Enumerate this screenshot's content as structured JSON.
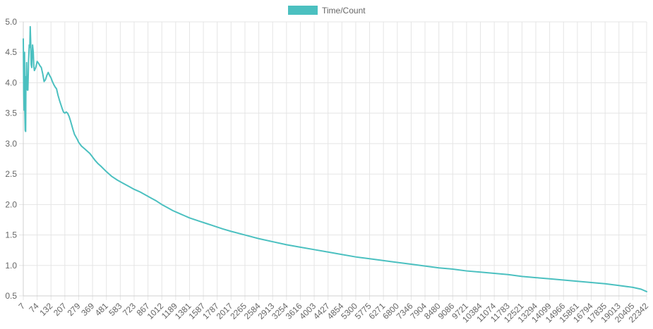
{
  "legend": {
    "label": "Time/Count",
    "color": "#4bc0c0"
  },
  "chart_data": {
    "type": "line",
    "title": "",
    "xlabel": "",
    "ylabel": "",
    "legend_position": "top-center",
    "grid": true,
    "x_is_category": true,
    "ylim": [
      0.5,
      5.0
    ],
    "y_ticks": [
      0.5,
      1.0,
      1.5,
      2.0,
      2.5,
      3.0,
      3.5,
      4.0,
      4.5,
      5.0
    ],
    "y_tick_labels": [
      "0.5",
      "1.0",
      "1.5",
      "2.0",
      "2.5",
      "3.0",
      "3.5",
      "4.0",
      "4.5",
      "5.0"
    ],
    "x_tick_labels": [
      "7",
      "74",
      "132",
      "207",
      "279",
      "369",
      "481",
      "583",
      "723",
      "867",
      "1012",
      "1189",
      "1381",
      "1587",
      "1787",
      "2017",
      "2265",
      "2584",
      "2913",
      "3254",
      "3616",
      "4003",
      "4427",
      "4854",
      "5300",
      "5775",
      "6271",
      "6800",
      "7346",
      "7904",
      "8480",
      "9086",
      "9721",
      "10384",
      "11074",
      "11783",
      "12521",
      "13294",
      "14099",
      "14966",
      "15861",
      "16794",
      "17835",
      "19013",
      "20405",
      "22342"
    ],
    "series": [
      {
        "name": "Time/Count",
        "color": "#4bc0c0",
        "points": [
          [
            0,
            4.72
          ],
          [
            0.03,
            3.85
          ],
          [
            0.06,
            3.55
          ],
          [
            0.09,
            4.5
          ],
          [
            0.11,
            3.55
          ],
          [
            0.14,
            3.22
          ],
          [
            0.17,
            3.2
          ],
          [
            0.19,
            4.1
          ],
          [
            0.21,
            3.9
          ],
          [
            0.24,
            4.33
          ],
          [
            0.26,
            3.95
          ],
          [
            0.29,
            3.88
          ],
          [
            0.33,
            3.88
          ],
          [
            0.38,
            4.35
          ],
          [
            0.43,
            4.62
          ],
          [
            0.47,
            4.58
          ],
          [
            0.5,
            4.92
          ],
          [
            0.53,
            4.7
          ],
          [
            0.57,
            4.3
          ],
          [
            0.61,
            4.25
          ],
          [
            0.64,
            4.45
          ],
          [
            0.67,
            4.62
          ],
          [
            0.72,
            4.5
          ],
          [
            0.76,
            4.27
          ],
          [
            0.8,
            4.2
          ],
          [
            0.9,
            4.25
          ],
          [
            1.0,
            4.35
          ],
          [
            1.1,
            4.32
          ],
          [
            1.2,
            4.28
          ],
          [
            1.3,
            4.25
          ],
          [
            1.4,
            4.15
          ],
          [
            1.5,
            4.02
          ],
          [
            1.6,
            4.05
          ],
          [
            1.7,
            4.12
          ],
          [
            1.8,
            4.17
          ],
          [
            1.9,
            4.12
          ],
          [
            2.0,
            4.08
          ],
          [
            2.1,
            4.02
          ],
          [
            2.2,
            3.97
          ],
          [
            2.3,
            3.93
          ],
          [
            2.4,
            3.9
          ],
          [
            2.5,
            3.8
          ],
          [
            2.6,
            3.72
          ],
          [
            2.7,
            3.65
          ],
          [
            2.8,
            3.58
          ],
          [
            2.9,
            3.52
          ],
          [
            3.0,
            3.5
          ],
          [
            3.1,
            3.52
          ],
          [
            3.2,
            3.5
          ],
          [
            3.3,
            3.45
          ],
          [
            3.4,
            3.38
          ],
          [
            3.5,
            3.3
          ],
          [
            3.6,
            3.22
          ],
          [
            3.7,
            3.15
          ],
          [
            3.8,
            3.11
          ],
          [
            3.9,
            3.07
          ],
          [
            4.0,
            3.02
          ],
          [
            4.2,
            2.96
          ],
          [
            4.4,
            2.92
          ],
          [
            4.6,
            2.88
          ],
          [
            4.8,
            2.84
          ],
          [
            5.0,
            2.78
          ],
          [
            5.2,
            2.72
          ],
          [
            5.4,
            2.67
          ],
          [
            5.6,
            2.63
          ],
          [
            6.0,
            2.54
          ],
          [
            6.4,
            2.46
          ],
          [
            6.8,
            2.4
          ],
          [
            7.2,
            2.35
          ],
          [
            7.6,
            2.3
          ],
          [
            8.0,
            2.25
          ],
          [
            8.4,
            2.21
          ],
          [
            8.8,
            2.16
          ],
          [
            9.2,
            2.11
          ],
          [
            9.6,
            2.06
          ],
          [
            10.0,
            2.0
          ],
          [
            10.4,
            1.95
          ],
          [
            10.8,
            1.9
          ],
          [
            11.2,
            1.86
          ],
          [
            11.6,
            1.82
          ],
          [
            12.0,
            1.78
          ],
          [
            12.4,
            1.75
          ],
          [
            12.8,
            1.72
          ],
          [
            13.2,
            1.69
          ],
          [
            13.6,
            1.66
          ],
          [
            14.0,
            1.63
          ],
          [
            14.4,
            1.6
          ],
          [
            15.0,
            1.56
          ],
          [
            16.0,
            1.5
          ],
          [
            17.0,
            1.44
          ],
          [
            18.0,
            1.39
          ],
          [
            19.0,
            1.34
          ],
          [
            20.0,
            1.3
          ],
          [
            21.0,
            1.26
          ],
          [
            22.0,
            1.22
          ],
          [
            23.0,
            1.18
          ],
          [
            24.0,
            1.14
          ],
          [
            25.0,
            1.11
          ],
          [
            26.0,
            1.08
          ],
          [
            27.0,
            1.05
          ],
          [
            28.0,
            1.02
          ],
          [
            29.0,
            0.99
          ],
          [
            30.0,
            0.96
          ],
          [
            31.0,
            0.94
          ],
          [
            32.0,
            0.91
          ],
          [
            33.0,
            0.89
          ],
          [
            34.0,
            0.87
          ],
          [
            35.0,
            0.85
          ],
          [
            36.0,
            0.82
          ],
          [
            37.0,
            0.8
          ],
          [
            38.0,
            0.78
          ],
          [
            39.0,
            0.76
          ],
          [
            40.0,
            0.74
          ],
          [
            41.0,
            0.72
          ],
          [
            42.0,
            0.7
          ],
          [
            43.0,
            0.67
          ],
          [
            44.0,
            0.64
          ],
          [
            44.6,
            0.61
          ],
          [
            45.0,
            0.57
          ]
        ]
      }
    ]
  }
}
